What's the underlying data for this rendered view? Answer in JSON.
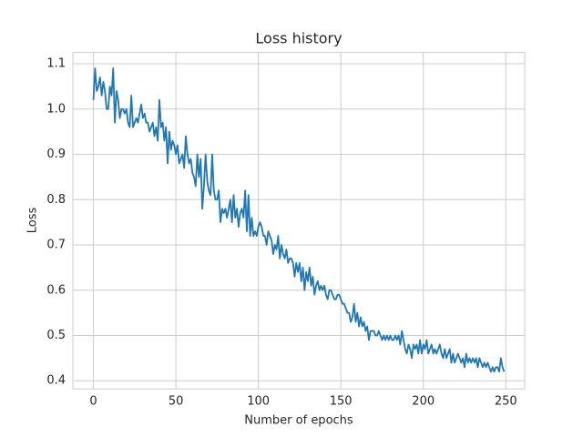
{
  "chart_data": {
    "type": "line",
    "title": "Loss history",
    "x_label": "Number of epochs",
    "y_label": "Loss",
    "x": [
      0,
      1,
      2,
      3,
      4,
      5,
      6,
      7,
      8,
      9,
      10,
      11,
      12,
      13,
      14,
      15,
      16,
      17,
      18,
      19,
      20,
      21,
      22,
      23,
      24,
      25,
      26,
      27,
      28,
      29,
      30,
      31,
      32,
      33,
      34,
      35,
      36,
      37,
      38,
      39,
      40,
      41,
      42,
      43,
      44,
      45,
      46,
      47,
      48,
      49,
      50,
      51,
      52,
      53,
      54,
      55,
      56,
      57,
      58,
      59,
      60,
      61,
      62,
      63,
      64,
      65,
      66,
      67,
      68,
      69,
      70,
      71,
      72,
      73,
      74,
      75,
      76,
      77,
      78,
      79,
      80,
      81,
      82,
      83,
      84,
      85,
      86,
      87,
      88,
      89,
      90,
      91,
      92,
      93,
      94,
      95,
      96,
      97,
      98,
      99,
      100,
      101,
      102,
      103,
      104,
      105,
      106,
      107,
      108,
      109,
      110,
      111,
      112,
      113,
      114,
      115,
      116,
      117,
      118,
      119,
      120,
      121,
      122,
      123,
      124,
      125,
      126,
      127,
      128,
      129,
      130,
      131,
      132,
      133,
      134,
      135,
      136,
      137,
      138,
      139,
      140,
      141,
      142,
      143,
      144,
      145,
      146,
      147,
      148,
      149,
      150,
      151,
      152,
      153,
      154,
      155,
      156,
      157,
      158,
      159,
      160,
      161,
      162,
      163,
      164,
      165,
      166,
      167,
      168,
      169,
      170,
      171,
      172,
      173,
      174,
      175,
      176,
      177,
      178,
      179,
      180,
      181,
      182,
      183,
      184,
      185,
      186,
      187,
      188,
      189,
      190,
      191,
      192,
      193,
      194,
      195,
      196,
      197,
      198,
      199,
      200,
      201,
      202,
      203,
      204,
      205,
      206,
      207,
      208,
      209,
      210,
      211,
      212,
      213,
      214,
      215,
      216,
      217,
      218,
      219,
      220,
      221,
      222,
      223,
      224,
      225,
      226,
      227,
      228,
      229,
      230,
      231,
      232,
      233,
      234,
      235,
      236,
      237,
      238,
      239,
      240,
      241,
      242,
      243,
      244,
      245,
      246,
      247,
      248,
      249
    ],
    "series": [
      {
        "color": "#1f77b4",
        "values": [
          1.02,
          1.09,
          1.04,
          1.05,
          1.07,
          1.03,
          1.06,
          1.04,
          1.0,
          1.0,
          1.05,
          1.03,
          1.09,
          0.97,
          1.04,
          1.02,
          0.98,
          1.0,
          1.0,
          0.99,
          1.0,
          0.97,
          0.96,
          1.03,
          0.96,
          0.97,
          0.98,
          0.97,
          0.99,
          1.01,
          0.98,
          0.99,
          0.97,
          0.97,
          0.95,
          0.96,
          0.97,
          0.94,
          0.96,
          0.93,
          1.02,
          0.96,
          0.97,
          0.93,
          0.96,
          0.88,
          0.95,
          0.91,
          0.93,
          0.92,
          0.9,
          0.92,
          0.88,
          0.89,
          0.9,
          0.87,
          0.94,
          0.9,
          0.88,
          0.89,
          0.86,
          0.85,
          0.83,
          0.9,
          0.85,
          0.89,
          0.78,
          0.83,
          0.9,
          0.84,
          0.82,
          0.81,
          0.9,
          0.82,
          0.8,
          0.8,
          0.82,
          0.75,
          0.78,
          0.77,
          0.78,
          0.76,
          0.78,
          0.8,
          0.75,
          0.81,
          0.76,
          0.78,
          0.74,
          0.77,
          0.78,
          0.76,
          0.82,
          0.73,
          0.81,
          0.72,
          0.76,
          0.72,
          0.73,
          0.72,
          0.74,
          0.75,
          0.74,
          0.72,
          0.72,
          0.7,
          0.73,
          0.72,
          0.71,
          0.68,
          0.7,
          0.69,
          0.72,
          0.67,
          0.7,
          0.68,
          0.67,
          0.69,
          0.66,
          0.67,
          0.67,
          0.66,
          0.63,
          0.66,
          0.64,
          0.66,
          0.62,
          0.65,
          0.6,
          0.64,
          0.62,
          0.65,
          0.61,
          0.63,
          0.59,
          0.61,
          0.62,
          0.6,
          0.61,
          0.6,
          0.61,
          0.59,
          0.58,
          0.6,
          0.6,
          0.59,
          0.58,
          0.58,
          0.59,
          0.59,
          0.58,
          0.57,
          0.57,
          0.56,
          0.55,
          0.55,
          0.53,
          0.54,
          0.57,
          0.53,
          0.55,
          0.52,
          0.54,
          0.52,
          0.53,
          0.51,
          0.52,
          0.49,
          0.51,
          0.51,
          0.51,
          0.5,
          0.5,
          0.51,
          0.5,
          0.49,
          0.5,
          0.49,
          0.5,
          0.49,
          0.5,
          0.49,
          0.49,
          0.5,
          0.49,
          0.5,
          0.48,
          0.51,
          0.49,
          0.47,
          0.46,
          0.48,
          0.47,
          0.45,
          0.48,
          0.47,
          0.48,
          0.46,
          0.49,
          0.46,
          0.48,
          0.47,
          0.49,
          0.46,
          0.47,
          0.48,
          0.46,
          0.47,
          0.46,
          0.47,
          0.48,
          0.46,
          0.45,
          0.47,
          0.45,
          0.46,
          0.47,
          0.44,
          0.46,
          0.44,
          0.45,
          0.46,
          0.45,
          0.44,
          0.45,
          0.43,
          0.46,
          0.44,
          0.45,
          0.44,
          0.45,
          0.44,
          0.45,
          0.43,
          0.45,
          0.44,
          0.43,
          0.44,
          0.43,
          0.44,
          0.43,
          0.42,
          0.43,
          0.42,
          0.43,
          0.43,
          0.42,
          0.45,
          0.43,
          0.42
        ]
      }
    ],
    "xlim": [
      -12.45,
      261.45
    ],
    "ylim": [
      0.382,
      1.125
    ],
    "xticks": [
      0,
      50,
      100,
      150,
      200,
      250
    ],
    "yticks": [
      0.4,
      0.5,
      0.6,
      0.7,
      0.8,
      0.9,
      {
        "value": 1,
        "label": "1.0"
      },
      1.1
    ],
    "grid": true
  }
}
